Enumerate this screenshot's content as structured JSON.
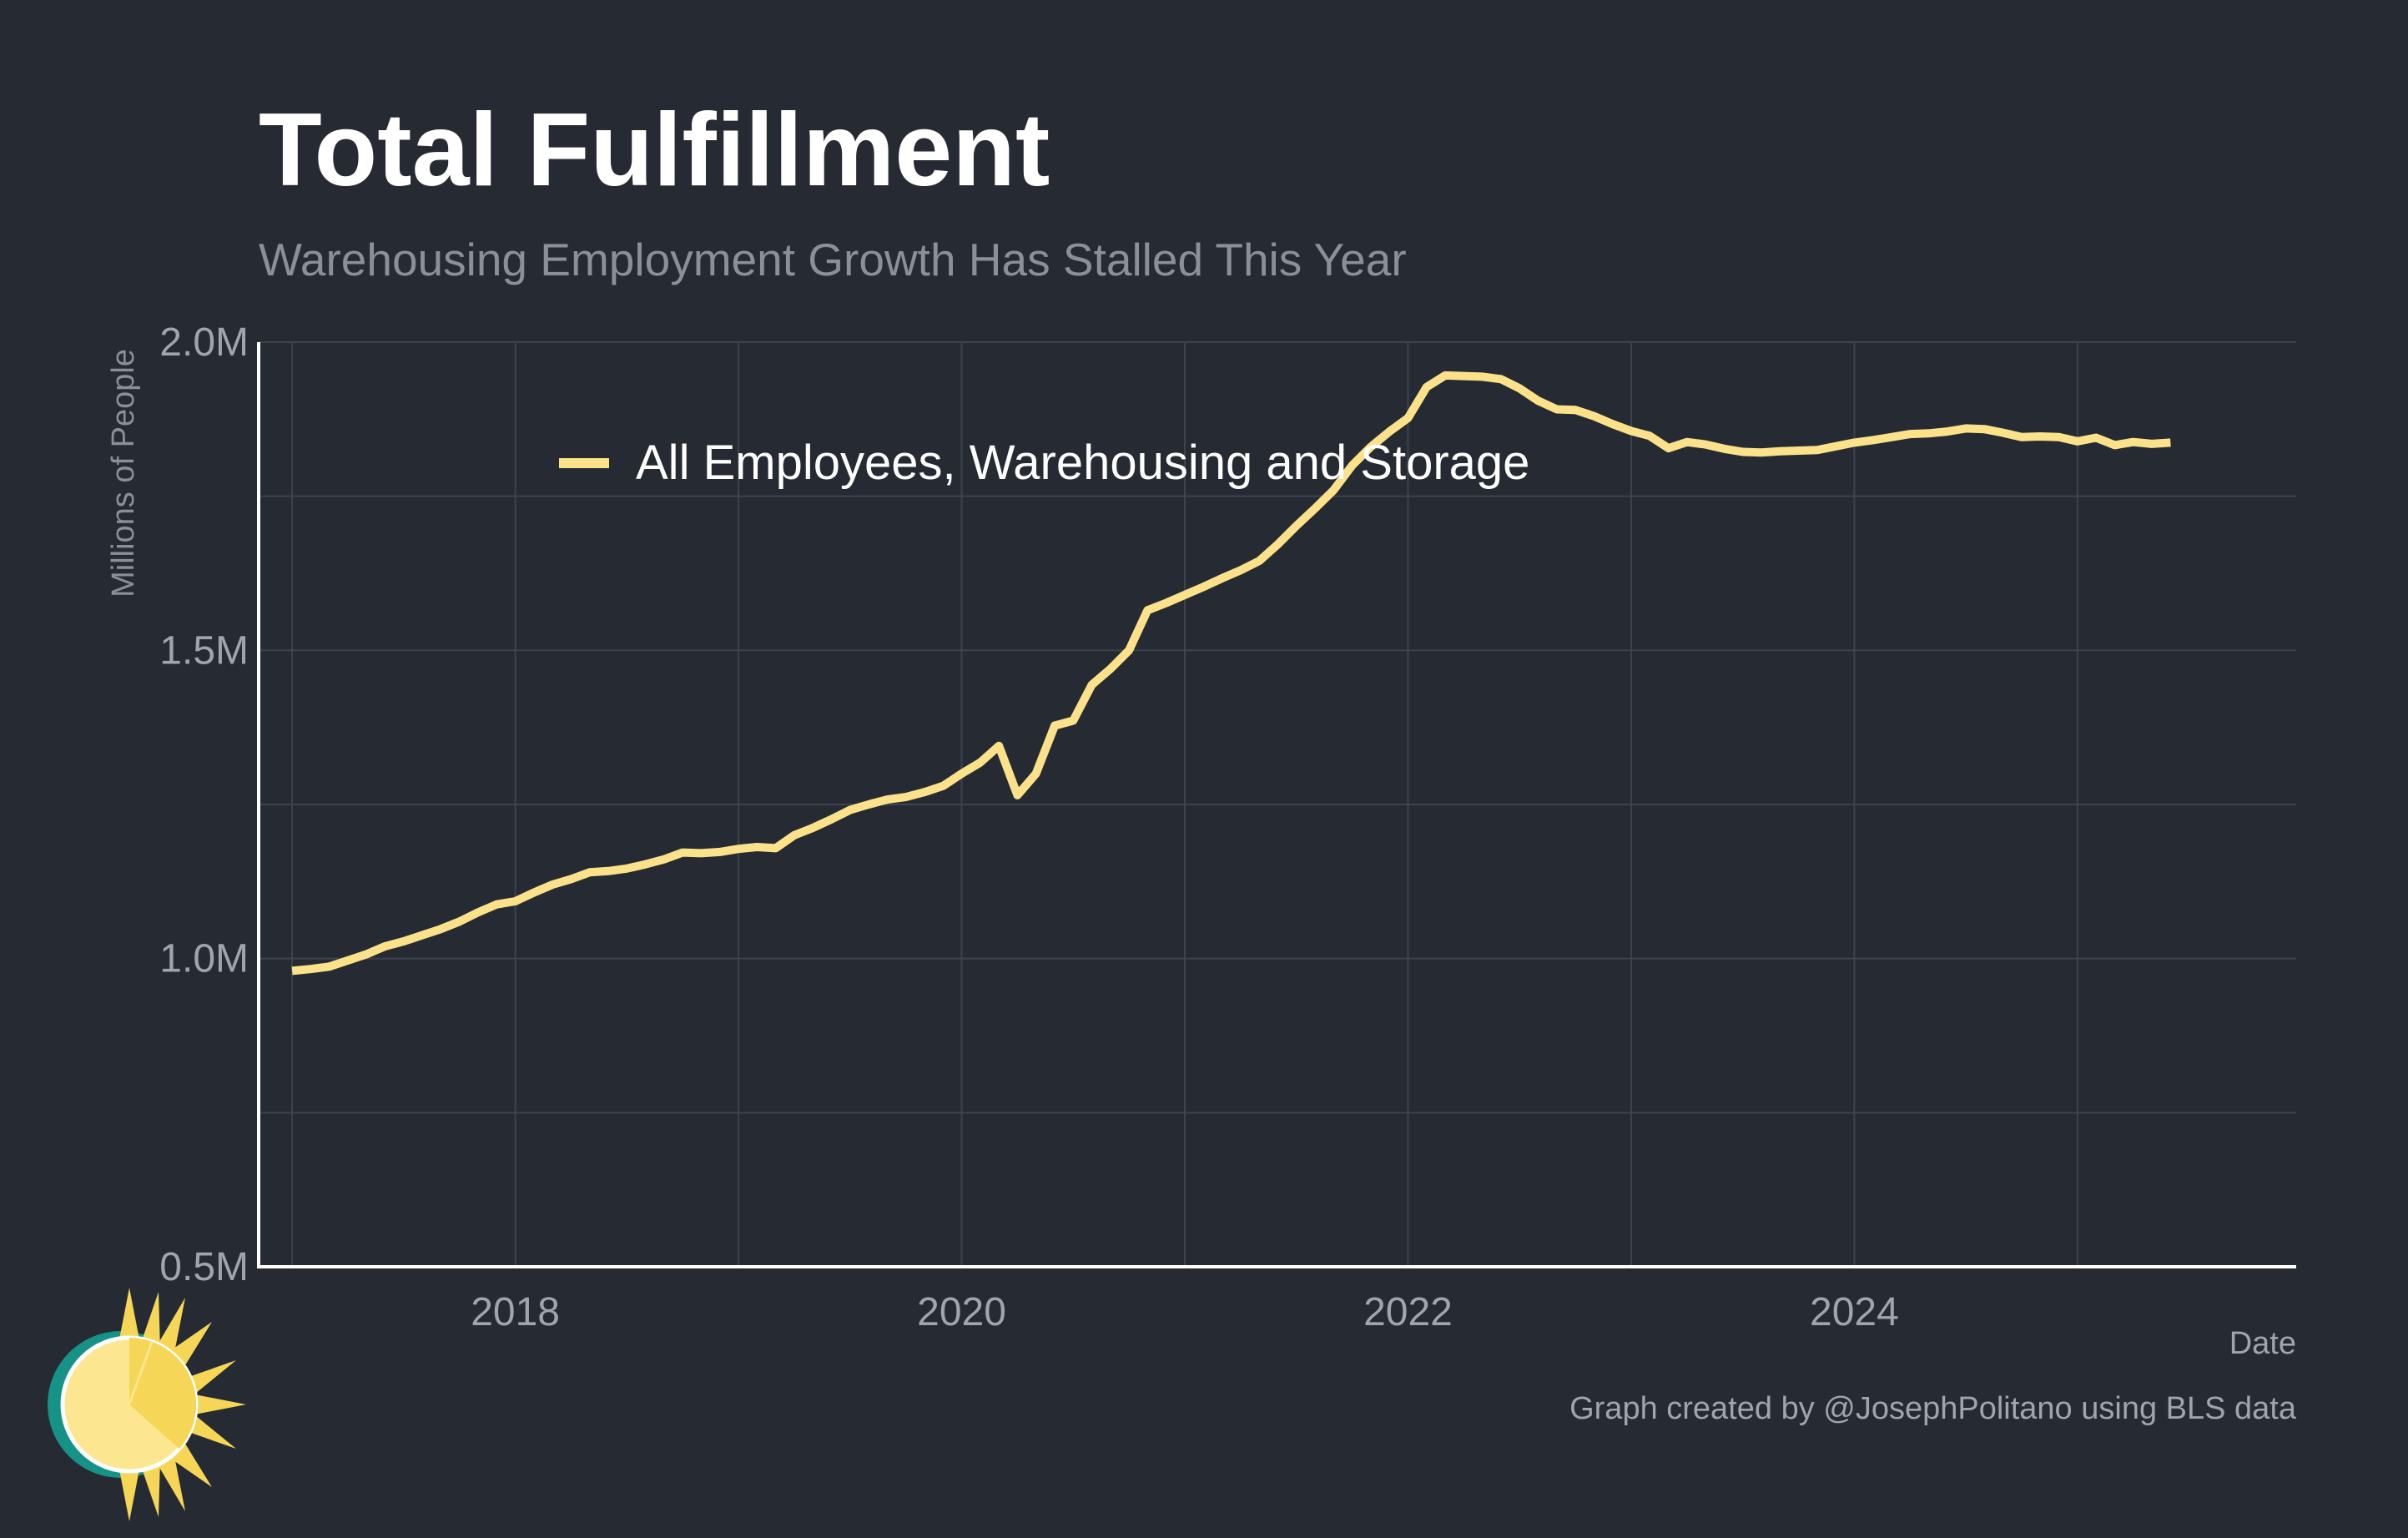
{
  "title": "Total Fulfillment",
  "subtitle": "Warehousing Employment Growth Has Stalled This Year",
  "credit": "Graph created by @JosephPolitano using BLS data",
  "colors": {
    "background": "#252a33",
    "series": "#fbe28a",
    "title": "#ffffff",
    "subtitle": "#8b8f98",
    "tick": "#a0a4ab",
    "grid": "#3e444e",
    "axis": "#ffffff"
  },
  "chart_data": {
    "type": "line",
    "xlabel": "Date",
    "ylabel": "Millions of People",
    "xlim": [
      2016.85,
      2025.98
    ],
    "ylim": [
      0.5,
      2.0
    ],
    "x_ticks": [
      2018,
      2020,
      2022,
      2024
    ],
    "x_tick_labels": [
      "2018",
      "2020",
      "2022",
      "2024"
    ],
    "y_ticks": [
      0.5,
      1.0,
      1.5,
      2.0
    ],
    "y_tick_labels": [
      "0.5M",
      "1.0M",
      "1.5M",
      "2.0M"
    ],
    "grid": true,
    "legend_position": "top-left",
    "series": [
      {
        "name": "All Employees, Warehousing and Storage",
        "color": "#fbe28a",
        "x": [
          2017.0,
          2017.083,
          2017.167,
          2017.25,
          2017.333,
          2017.417,
          2017.5,
          2017.583,
          2017.667,
          2017.75,
          2017.833,
          2017.917,
          2018.0,
          2018.083,
          2018.167,
          2018.25,
          2018.333,
          2018.417,
          2018.5,
          2018.583,
          2018.667,
          2018.75,
          2018.833,
          2018.917,
          2019.0,
          2019.083,
          2019.167,
          2019.25,
          2019.333,
          2019.417,
          2019.5,
          2019.583,
          2019.667,
          2019.75,
          2019.833,
          2019.917,
          2020.0,
          2020.083,
          2020.167,
          2020.25,
          2020.333,
          2020.417,
          2020.5,
          2020.583,
          2020.667,
          2020.75,
          2020.833,
          2020.917,
          2021.0,
          2021.083,
          2021.167,
          2021.25,
          2021.333,
          2021.417,
          2021.5,
          2021.583,
          2021.667,
          2021.75,
          2021.833,
          2021.917,
          2022.0,
          2022.083,
          2022.167,
          2022.25,
          2022.333,
          2022.417,
          2022.5,
          2022.583,
          2022.667,
          2022.75,
          2022.833,
          2022.917,
          2023.0,
          2023.083,
          2023.167,
          2023.25,
          2023.333,
          2023.417,
          2023.5,
          2023.583,
          2023.667,
          2023.75,
          2023.833,
          2023.917,
          2024.0,
          2024.083,
          2024.167,
          2024.25,
          2024.333,
          2024.417,
          2024.5,
          2024.583,
          2024.667,
          2024.75,
          2024.833,
          2024.917,
          2025.0,
          2025.083,
          2025.167,
          2025.25,
          2025.333,
          2025.417
        ],
        "y": [
          0.98,
          0.983,
          0.987,
          0.997,
          1.007,
          1.02,
          1.028,
          1.038,
          1.048,
          1.06,
          1.075,
          1.088,
          1.093,
          1.107,
          1.12,
          1.129,
          1.14,
          1.142,
          1.146,
          1.153,
          1.161,
          1.172,
          1.171,
          1.173,
          1.178,
          1.181,
          1.179,
          1.2,
          1.212,
          1.226,
          1.241,
          1.25,
          1.258,
          1.262,
          1.27,
          1.28,
          1.3,
          1.318,
          1.345,
          1.265,
          1.3,
          1.378,
          1.386,
          1.444,
          1.47,
          1.5,
          1.565,
          1.577,
          1.59,
          1.603,
          1.617,
          1.63,
          1.645,
          1.672,
          1.702,
          1.73,
          1.76,
          1.8,
          1.83,
          1.855,
          1.877,
          1.927,
          1.946,
          1.945,
          1.944,
          1.94,
          1.925,
          1.905,
          1.891,
          1.89,
          1.88,
          1.867,
          1.856,
          1.848,
          1.828,
          1.838,
          1.834,
          1.827,
          1.822,
          1.821,
          1.823,
          1.824,
          1.825,
          1.831,
          1.837,
          1.841,
          1.846,
          1.851,
          1.852,
          1.855,
          1.86,
          1.859,
          1.853,
          1.846,
          1.847,
          1.846,
          1.839,
          1.845,
          1.833,
          1.838,
          1.835,
          1.837
        ]
      }
    ]
  }
}
